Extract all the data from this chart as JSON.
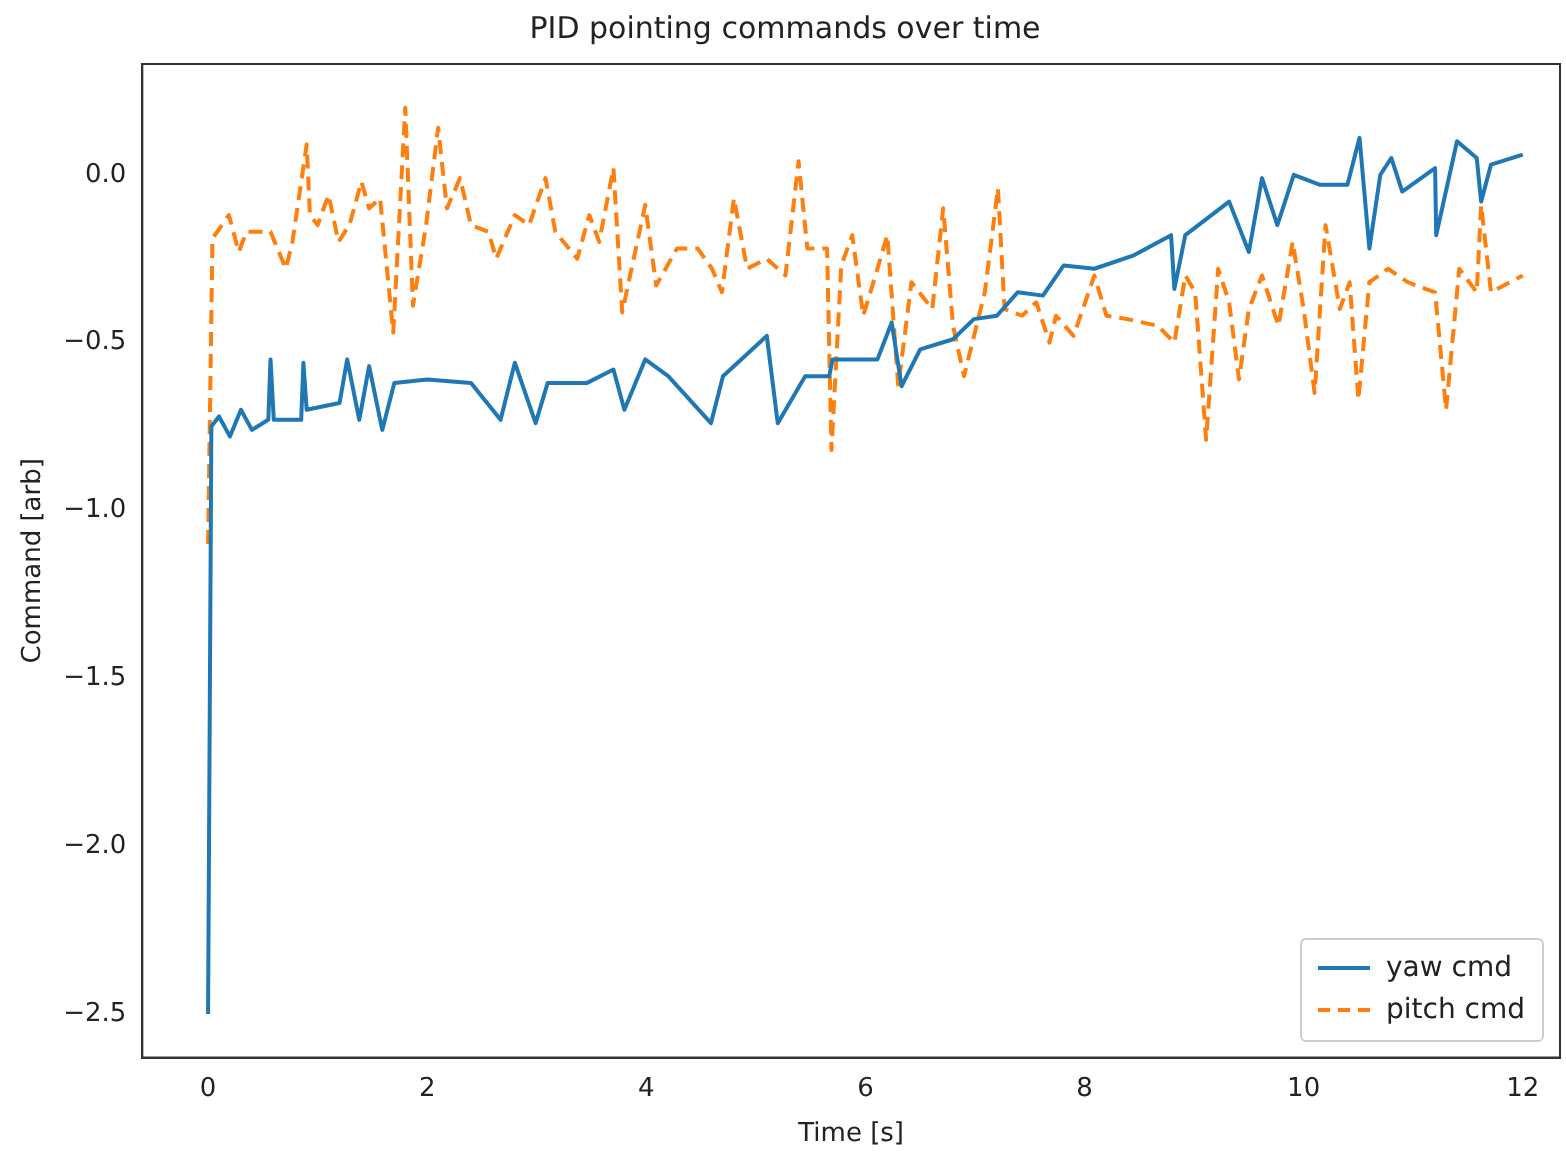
{
  "chart_data": {
    "type": "line",
    "title": "PID pointing commands over time",
    "xlabel": "Time [s]",
    "ylabel": "Command [arb]",
    "xlim": [
      -0.6,
      12.34
    ],
    "xticks": [
      0,
      2,
      4,
      6,
      8,
      10,
      12
    ],
    "ylim": [
      -2.63,
      0.33
    ],
    "yticks": [
      {
        "value": -2.5,
        "label": "−2.5"
      },
      {
        "value": -2.0,
        "label": "−2.0"
      },
      {
        "value": -1.5,
        "label": "−1.5"
      },
      {
        "value": -1.0,
        "label": "−1.0"
      },
      {
        "value": -0.5,
        "label": "−0.5"
      },
      {
        "value": 0.0,
        "label": "0.0"
      }
    ],
    "grid": false,
    "legend": "bottom right",
    "marker": "none",
    "series": [
      {
        "name": "yaw cmd",
        "color": "#1f77b4",
        "line_style": "solid",
        "x": [
          0,
          0.03,
          0.1,
          0.2,
          0.3,
          0.4,
          0.55,
          0.57,
          0.6,
          0.85,
          0.87,
          0.9,
          1.2,
          1.27,
          1.38,
          1.47,
          1.59,
          1.7,
          2.0,
          2.4,
          2.67,
          2.8,
          2.99,
          3.1,
          3.46,
          3.7,
          3.8,
          3.99,
          4.2,
          4.59,
          4.7,
          5.1,
          5.2,
          5.45,
          5.67,
          5.7,
          6.11,
          6.24,
          6.33,
          6.5,
          6.8,
          6.99,
          7.2,
          7.39,
          7.62,
          7.81,
          8.09,
          8.45,
          8.79,
          8.82,
          8.92,
          9.32,
          9.5,
          9.62,
          9.76,
          9.91,
          10.15,
          10.4,
          10.51,
          10.6,
          10.7,
          10.8,
          10.9,
          11.2,
          11.21,
          11.4,
          11.58,
          11.62,
          11.71,
          12.0
        ],
        "values": [
          -2.5,
          -0.75,
          -0.72,
          -0.78,
          -0.7,
          -0.76,
          -0.73,
          -0.55,
          -0.73,
          -0.73,
          -0.56,
          -0.7,
          -0.68,
          -0.55,
          -0.73,
          -0.57,
          -0.76,
          -0.62,
          -0.61,
          -0.62,
          -0.73,
          -0.56,
          -0.74,
          -0.62,
          -0.62,
          -0.58,
          -0.7,
          -0.55,
          -0.6,
          -0.74,
          -0.6,
          -0.48,
          -0.74,
          -0.6,
          -0.6,
          -0.55,
          -0.55,
          -0.44,
          -0.63,
          -0.52,
          -0.49,
          -0.43,
          -0.42,
          -0.35,
          -0.36,
          -0.27,
          -0.28,
          -0.24,
          -0.18,
          -0.34,
          -0.18,
          -0.08,
          -0.23,
          -0.01,
          -0.15,
          0.0,
          -0.03,
          -0.03,
          0.11,
          -0.22,
          0.0,
          0.05,
          -0.05,
          0.02,
          -0.18,
          0.1,
          0.05,
          -0.08,
          0.03,
          0.06
        ]
      },
      {
        "name": "pitch cmd",
        "color": "#ff7f0e",
        "line_style": "dashed",
        "x": [
          0,
          0.04,
          0.19,
          0.28,
          0.35,
          0.57,
          0.71,
          0.77,
          0.9,
          0.93,
          1.0,
          1.1,
          1.19,
          1.29,
          1.4,
          1.47,
          1.57,
          1.69,
          1.8,
          1.87,
          1.99,
          2.1,
          2.18,
          2.3,
          2.4,
          2.56,
          2.63,
          2.8,
          2.93,
          3.08,
          3.17,
          3.37,
          3.48,
          3.57,
          3.7,
          3.78,
          3.99,
          4.09,
          4.28,
          4.47,
          4.6,
          4.69,
          4.8,
          4.92,
          5.1,
          5.27,
          5.39,
          5.47,
          5.65,
          5.69,
          5.78,
          5.88,
          5.98,
          6.11,
          6.2,
          6.3,
          6.42,
          6.61,
          6.71,
          6.8,
          6.9,
          7.09,
          7.21,
          7.27,
          7.43,
          7.56,
          7.68,
          7.74,
          7.9,
          8.09,
          8.2,
          8.39,
          8.67,
          8.82,
          8.92,
          9.01,
          9.11,
          9.22,
          9.32,
          9.41,
          9.5,
          9.62,
          9.77,
          9.9,
          10.0,
          10.1,
          10.2,
          10.33,
          10.42,
          10.5,
          10.6,
          10.77,
          10.95,
          11.2,
          11.3,
          11.42,
          11.58,
          11.62,
          11.71,
          12.0
        ],
        "values": [
          -1.1,
          -0.19,
          -0.12,
          -0.23,
          -0.17,
          -0.17,
          -0.28,
          -0.2,
          0.09,
          -0.12,
          -0.15,
          -0.06,
          -0.2,
          -0.15,
          -0.02,
          -0.1,
          -0.07,
          -0.47,
          0.2,
          -0.39,
          -0.15,
          0.14,
          -0.1,
          -0.01,
          -0.15,
          -0.17,
          -0.25,
          -0.12,
          -0.15,
          -0.01,
          -0.17,
          -0.25,
          -0.12,
          -0.2,
          0.02,
          -0.41,
          -0.09,
          -0.33,
          -0.22,
          -0.22,
          -0.28,
          -0.35,
          -0.07,
          -0.28,
          -0.25,
          -0.3,
          0.04,
          -0.22,
          -0.22,
          -0.82,
          -0.27,
          -0.18,
          -0.42,
          -0.28,
          -0.18,
          -0.63,
          -0.32,
          -0.4,
          -0.1,
          -0.45,
          -0.6,
          -0.35,
          -0.04,
          -0.4,
          -0.42,
          -0.38,
          -0.5,
          -0.42,
          -0.48,
          -0.3,
          -0.42,
          -0.43,
          -0.45,
          -0.5,
          -0.3,
          -0.35,
          -0.79,
          -0.28,
          -0.38,
          -0.61,
          -0.4,
          -0.3,
          -0.45,
          -0.2,
          -0.4,
          -0.65,
          -0.15,
          -0.4,
          -0.32,
          -0.67,
          -0.32,
          -0.28,
          -0.32,
          -0.35,
          -0.7,
          -0.28,
          -0.35,
          -0.09,
          -0.35,
          -0.3
        ]
      }
    ]
  }
}
